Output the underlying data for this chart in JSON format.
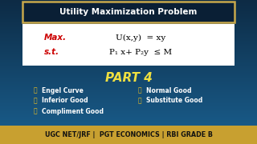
{
  "bg_color_top": "#0d2b45",
  "bg_color_bottom": "#1a6090",
  "title_text": "Utility Maximization Problem",
  "title_bg": "#0a1f35",
  "title_border": "#c8a84b",
  "white_box_color": "#ffffff",
  "max_label": "Max.",
  "max_label_color": "#cc0000",
  "st_label": "s.t.",
  "eq1": "U(x,y)  = xy",
  "eq2": "P₁ x+ P₂y  ≤ M",
  "part4_text": "PART 4",
  "part4_color": "#f0e040",
  "bottom_bar_color": "#c8a030",
  "bottom_text": "UGC NET/JRF |  PGT ECONOMICS | RBI GRADE B",
  "bottom_text_color": "#111111",
  "thumb": "👍",
  "items_col1": [
    "Engel Curve",
    "Inferior Good",
    "Compliment Good"
  ],
  "items_col2": [
    "Normal Good",
    "Substitute Good"
  ],
  "items_color": "#ffffff",
  "thumb_color": "#f0c020"
}
